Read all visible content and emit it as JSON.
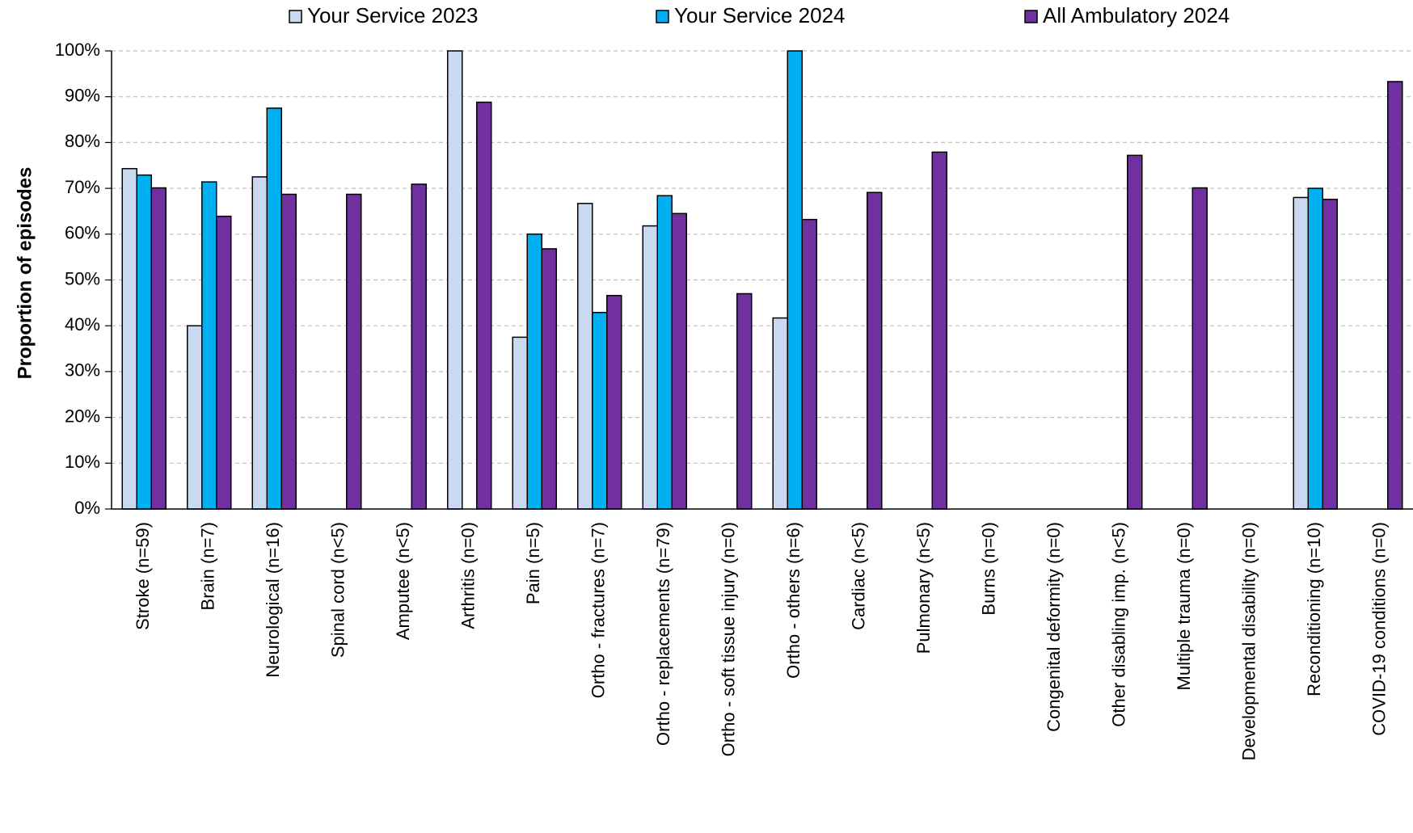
{
  "chart_data": {
    "type": "bar",
    "ylabel": "Proportion of episodes",
    "xlabel": "",
    "ylim": [
      0,
      100
    ],
    "yticks": [
      "0%",
      "10%",
      "20%",
      "30%",
      "40%",
      "50%",
      "60%",
      "70%",
      "80%",
      "90%",
      "100%"
    ],
    "grid": true,
    "legend_position": "top",
    "categories": [
      "Stroke (n=59)",
      "Brain (n=7)",
      "Neurological (n=16)",
      "Spinal cord (n<5)",
      "Amputee (n<5)",
      "Arthritis (n=0)",
      "Pain (n=5)",
      "Ortho - fractures (n=7)",
      "Ortho - replacements (n=79)",
      "Ortho - soft tissue injury (n=0)",
      "Ortho - others (n=6)",
      "Cardiac (n<5)",
      "Pulmonary (n<5)",
      "Burns (n=0)",
      "Congenital deformity (n=0)",
      "Other disabling imp. (n<5)",
      "Multiple trauma (n=0)",
      "Developmental disability (n=0)",
      "Reconditioning (n=10)",
      "COVID-19 conditions (n=0)"
    ],
    "series": [
      {
        "name": "Your Service 2023",
        "color": "#c9d9f0",
        "values": [
          74.3,
          40.0,
          72.5,
          null,
          null,
          100,
          37.5,
          66.7,
          61.8,
          null,
          41.7,
          null,
          null,
          null,
          null,
          null,
          null,
          null,
          68.0,
          null
        ]
      },
      {
        "name": "Your Service 2024",
        "color": "#00b0f0",
        "values": [
          72.9,
          71.4,
          87.5,
          null,
          null,
          null,
          60.0,
          42.9,
          68.4,
          null,
          100,
          null,
          null,
          null,
          null,
          null,
          null,
          null,
          70.0,
          null
        ]
      },
      {
        "name": "All Ambulatory 2024",
        "color": "#7030a0",
        "values": [
          70.1,
          63.9,
          68.7,
          68.7,
          70.9,
          88.8,
          56.8,
          46.6,
          64.5,
          47.0,
          63.2,
          69.1,
          77.9,
          null,
          null,
          77.2,
          70.1,
          null,
          67.6,
          93.3
        ]
      }
    ]
  }
}
